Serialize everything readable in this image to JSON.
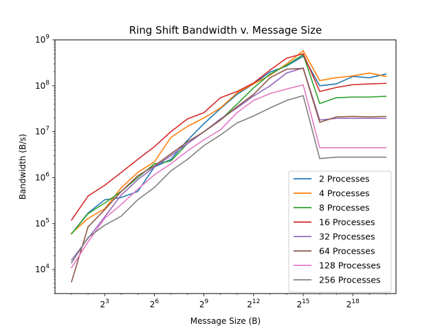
{
  "chart_data": {
    "type": "line",
    "title": "Ring Shift Bandwidth v. Message Size",
    "xlabel": "Message Size (B)",
    "ylabel": "Bandwidth (B/s)",
    "xscale": "log2",
    "yscale": "log10",
    "xlim": [
      1,
      1600000
    ],
    "ylim": [
      3000,
      1000000000
    ],
    "x_ticks": [
      {
        "value": 8,
        "base": "2",
        "exp": "3"
      },
      {
        "value": 64,
        "base": "2",
        "exp": "6"
      },
      {
        "value": 512,
        "base": "2",
        "exp": "9"
      },
      {
        "value": 4096,
        "base": "2",
        "exp": "12"
      },
      {
        "value": 32768,
        "base": "2",
        "exp": "15"
      },
      {
        "value": 262144,
        "base": "2",
        "exp": "18"
      }
    ],
    "y_ticks": [
      {
        "value": 10000,
        "base": "10",
        "exp": "4"
      },
      {
        "value": 100000,
        "base": "10",
        "exp": "5"
      },
      {
        "value": 1000000,
        "base": "10",
        "exp": "6"
      },
      {
        "value": 10000000,
        "base": "10",
        "exp": "7"
      },
      {
        "value": 100000000,
        "base": "10",
        "exp": "8"
      },
      {
        "value": 1000000000,
        "base": "10",
        "exp": "9"
      }
    ],
    "grid": false,
    "legend_position": "lower-right",
    "x": [
      2,
      4,
      8,
      16,
      32,
      64,
      128,
      256,
      512,
      1024,
      2048,
      4096,
      8192,
      16384,
      32768,
      65536,
      131072,
      262144,
      524288,
      1048576
    ],
    "series": [
      {
        "name": "2 Processes",
        "color": "#1f77b4",
        "values": [
          60000,
          170000,
          330000,
          370000,
          500000,
          1700000,
          2500000,
          6500000,
          15000000,
          32000000,
          65000000,
          110000000,
          200000000,
          270000000,
          440000000,
          100000000,
          110000000,
          160000000,
          150000000,
          180000000
        ]
      },
      {
        "name": "4 Processes",
        "color": "#ff7f0e",
        "values": [
          62000,
          130000,
          210000,
          600000,
          1300000,
          2200000,
          7500000,
          13000000,
          20000000,
          33000000,
          70000000,
          110000000,
          170000000,
          300000000,
          580000000,
          130000000,
          150000000,
          165000000,
          190000000,
          160000000
        ]
      },
      {
        "name": "8 Processes",
        "color": "#2ca02c",
        "values": [
          60000,
          165000,
          280000,
          500000,
          1000000,
          2000000,
          2300000,
          5500000,
          10000000,
          18000000,
          40000000,
          90000000,
          180000000,
          280000000,
          480000000,
          41000000,
          55000000,
          57000000,
          57000000,
          59000000
        ]
      },
      {
        "name": "16 Processes",
        "color": "#d62728",
        "values": [
          120000,
          400000,
          680000,
          1300000,
          2500000,
          4700000,
          10000000,
          19000000,
          26000000,
          55000000,
          75000000,
          115000000,
          220000000,
          400000000,
          500000000,
          75000000,
          92000000,
          106000000,
          110000000,
          113000000
        ]
      },
      {
        "name": "32 Processes",
        "color": "#9467bd",
        "values": [
          16000,
          48000,
          140000,
          420000,
          900000,
          1700000,
          3000000,
          5500000,
          10000000,
          19000000,
          33000000,
          60000000,
          100000000,
          190000000,
          245000000,
          18000000,
          19500000,
          19500000,
          19500000,
          19500000
        ]
      },
      {
        "name": "64 Processes",
        "color": "#8c564b",
        "values": [
          5400,
          85000,
          200000,
          500000,
          1100000,
          1800000,
          3300000,
          6000000,
          10000000,
          18000000,
          35000000,
          65000000,
          150000000,
          230000000,
          240000000,
          16000000,
          21000000,
          21500000,
          21000000,
          21500000
        ]
      },
      {
        "name": "128 Processes",
        "color": "#e377c2",
        "values": [
          11000,
          40000,
          130000,
          260000,
          560000,
          1150000,
          2000000,
          3800000,
          6700000,
          11000000,
          26000000,
          48000000,
          68000000,
          85000000,
          105000000,
          4500000,
          4500000,
          4500000,
          4500000,
          4500000
        ]
      },
      {
        "name": "256 Processes",
        "color": "#7f7f7f",
        "values": [
          14000,
          50000,
          92000,
          145000,
          330000,
          610000,
          1400000,
          2500000,
          5000000,
          8500000,
          15500000,
          22000000,
          33000000,
          48000000,
          61000000,
          2600000,
          2800000,
          2800000,
          2800000,
          2800000
        ]
      }
    ]
  }
}
